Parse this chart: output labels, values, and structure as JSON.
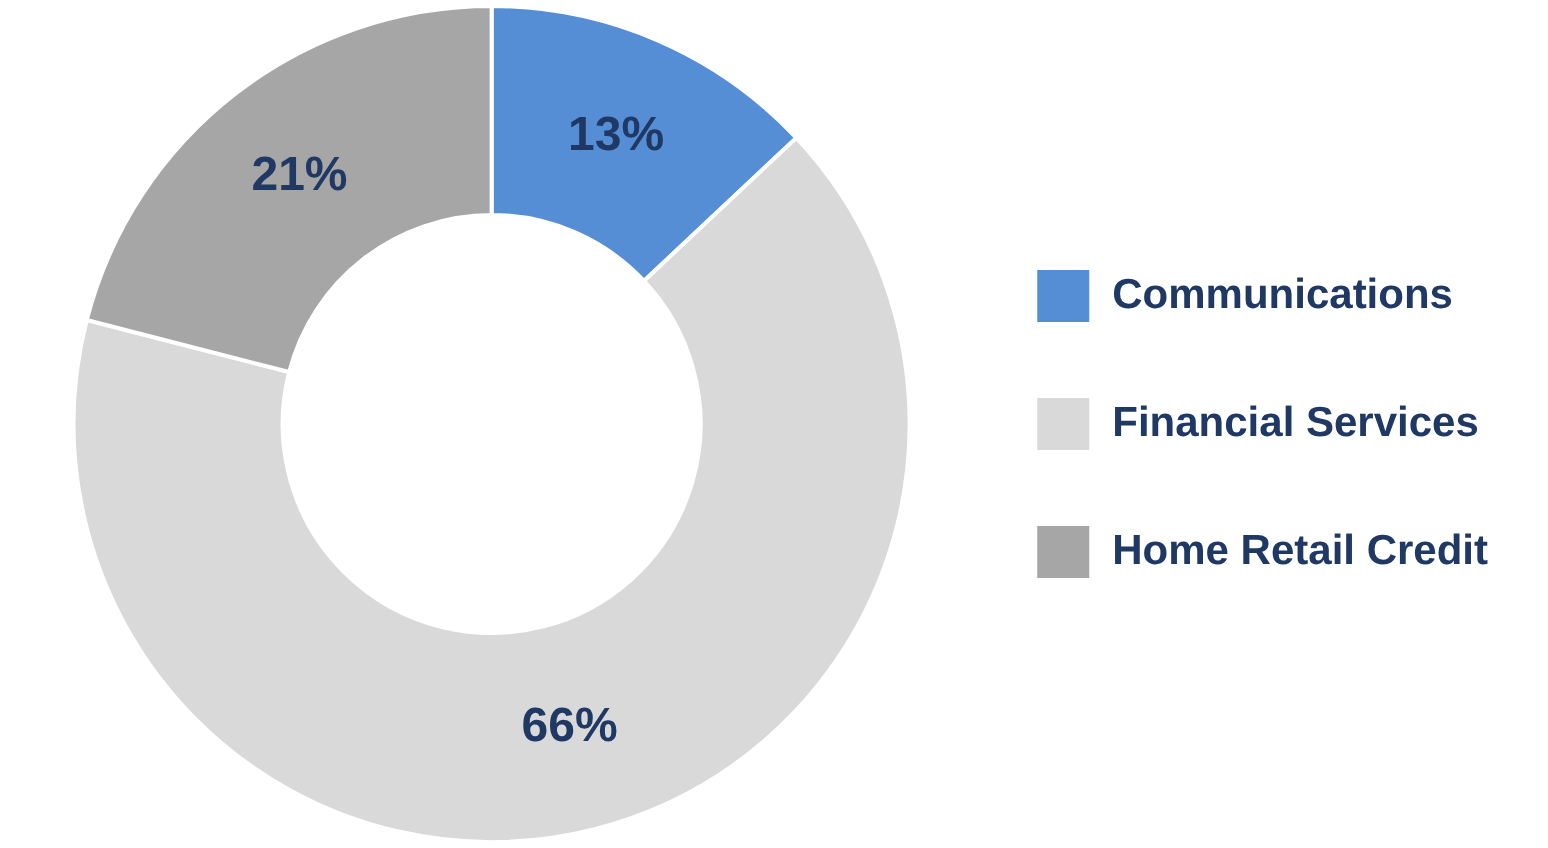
{
  "chart_data": {
    "type": "donut",
    "categories": [
      "Communications",
      "Financial Services",
      "Home Retail Credit"
    ],
    "values": [
      13,
      66,
      21
    ],
    "colors": [
      "#558ed5",
      "#d9d9d9",
      "#a6a6a6"
    ],
    "value_labels": [
      "13%",
      "66%",
      "21%"
    ],
    "legend": "right"
  }
}
